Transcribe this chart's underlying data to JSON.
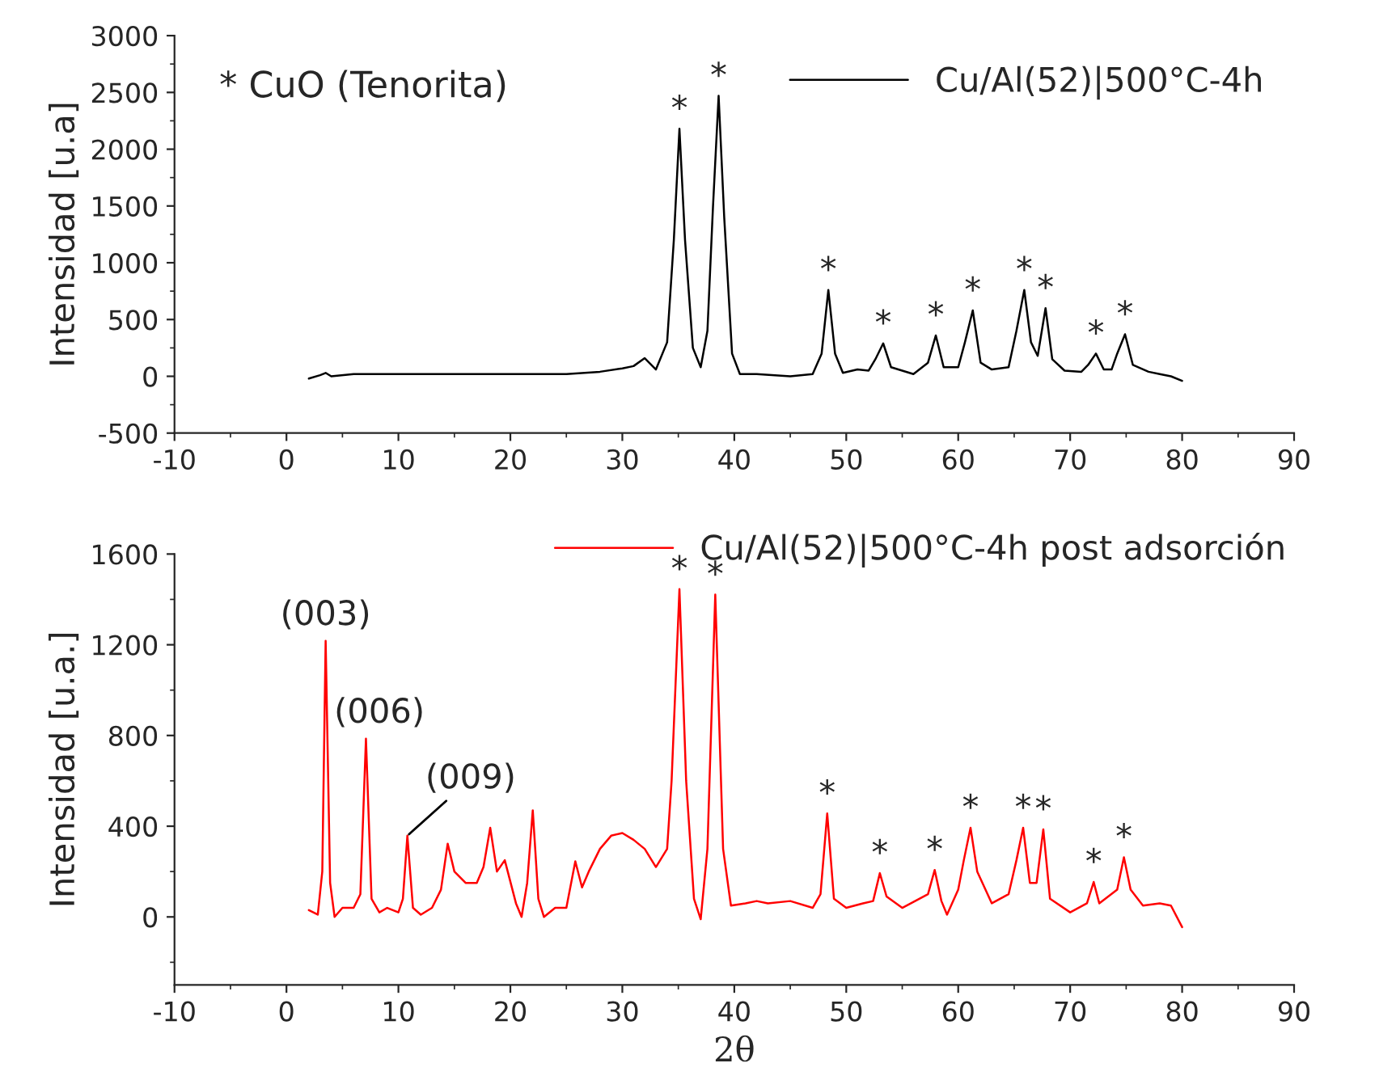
{
  "chart_data": [
    {
      "type": "line",
      "ylabel": "Intensidad [u.a]",
      "xlim": [
        -10,
        90
      ],
      "xticks": [
        -10,
        0,
        10,
        20,
        30,
        40,
        50,
        60,
        70,
        80,
        90
      ],
      "ylim": [
        -500,
        3000
      ],
      "yticks": [
        -500,
        0,
        500,
        1000,
        1500,
        2000,
        2500,
        3000
      ],
      "grid": false,
      "legend": "top right",
      "series": [
        {
          "name": "Cu/Al(52)|500°C-4h",
          "color": "#000000",
          "x": [
            2,
            3,
            3.5,
            4,
            6,
            10,
            15,
            20,
            25,
            28,
            30,
            31,
            32,
            33,
            34,
            34.6,
            35.1,
            35.6,
            36.3,
            37,
            37.6,
            38.1,
            38.6,
            39.1,
            39.8,
            40.5,
            42,
            45,
            47,
            47.8,
            48.4,
            49,
            49.7,
            51,
            52,
            52.6,
            53.3,
            54,
            56,
            57.3,
            58,
            58.7,
            60,
            60.6,
            61.3,
            62,
            63,
            64.5,
            65.2,
            65.9,
            66.5,
            67.1,
            67.8,
            68.4,
            69.5,
            71,
            71.6,
            72.3,
            73,
            73.7,
            74.2,
            74.9,
            75.6,
            77,
            78,
            79,
            80
          ],
          "values": [
            -20,
            10,
            30,
            0,
            20,
            20,
            20,
            20,
            20,
            40,
            70,
            90,
            160,
            60,
            300,
            1200,
            2180,
            1200,
            250,
            80,
            400,
            1500,
            2470,
            1400,
            200,
            20,
            20,
            0,
            20,
            200,
            760,
            200,
            30,
            60,
            50,
            150,
            290,
            80,
            20,
            120,
            360,
            80,
            80,
            300,
            580,
            120,
            60,
            80,
            400,
            760,
            300,
            180,
            600,
            150,
            50,
            40,
            100,
            200,
            60,
            60,
            200,
            370,
            100,
            40,
            20,
            0,
            -40
          ]
        }
      ],
      "annotations": [
        "* CuO (Tenorita)",
        {
          "text": "*",
          "x": 35.1,
          "y": 2180
        },
        {
          "text": "*",
          "x": 38.6,
          "y": 2470
        },
        {
          "text": "*",
          "x": 48.4,
          "y": 760
        },
        {
          "text": "*",
          "x": 53.3,
          "y": 290
        },
        {
          "text": "*",
          "x": 58,
          "y": 360
        },
        {
          "text": "*",
          "x": 61.3,
          "y": 580
        },
        {
          "text": "*",
          "x": 65.9,
          "y": 760
        },
        {
          "text": "*",
          "x": 67.8,
          "y": 600
        },
        {
          "text": "*",
          "x": 72.3,
          "y": 200
        },
        {
          "text": "*",
          "x": 74.9,
          "y": 370
        }
      ]
    },
    {
      "type": "line",
      "ylabel": "Intensidad [u.a.]",
      "xlabel": "2θ",
      "xlim": [
        -10,
        90
      ],
      "xticks": [
        -10,
        0,
        10,
        20,
        30,
        40,
        50,
        60,
        70,
        80,
        90
      ],
      "ylim": [
        -300,
        1600
      ],
      "yticks": [
        0,
        400,
        800,
        1200,
        1600
      ],
      "grid": false,
      "legend": "top right",
      "series": [
        {
          "name": "Cu/Al(52)|500°C-4h post adsorción",
          "color": "#ff0000",
          "x": [
            2,
            2.8,
            3.2,
            3.5,
            3.9,
            4.3,
            5,
            6,
            6.6,
            7.1,
            7.6,
            8.3,
            9,
            10,
            10.4,
            10.8,
            11.3,
            12,
            13,
            13.8,
            14.4,
            15,
            16,
            17,
            17.6,
            18.2,
            18.8,
            19.5,
            20.5,
            21,
            21.5,
            22,
            22.5,
            23,
            24,
            25,
            25.8,
            26.4,
            27,
            28,
            29,
            30,
            31,
            32,
            33,
            34,
            34.4,
            35.1,
            35.7,
            36.4,
            37,
            37.6,
            38.3,
            39,
            39.7,
            41,
            42,
            43,
            45,
            47,
            47.7,
            48.3,
            48.9,
            50,
            51.5,
            52.4,
            53,
            53.6,
            55,
            57.3,
            57.9,
            58.5,
            59,
            60,
            60.5,
            61.1,
            61.7,
            63,
            64.5,
            65.2,
            65.8,
            66.4,
            67,
            67.6,
            68.2,
            70,
            71.5,
            72.1,
            72.6,
            74.2,
            74.8,
            75.4,
            76.5,
            78,
            79,
            80
          ],
          "values": [
            30,
            10,
            200,
            1217,
            150,
            0,
            40,
            40,
            100,
            786,
            80,
            20,
            40,
            20,
            80,
            358,
            40,
            10,
            40,
            120,
            323,
            200,
            150,
            150,
            220,
            393,
            200,
            250,
            60,
            0,
            150,
            470,
            80,
            0,
            40,
            40,
            245,
            130,
            200,
            300,
            358,
            370,
            340,
            300,
            220,
            300,
            600,
            1445,
            600,
            80,
            -10,
            300,
            1421,
            300,
            50,
            60,
            70,
            60,
            70,
            40,
            100,
            456,
            80,
            40,
            60,
            70,
            193,
            90,
            40,
            100,
            207,
            70,
            10,
            120,
            250,
            393,
            200,
            60,
            100,
            250,
            393,
            150,
            150,
            386,
            80,
            20,
            60,
            154,
            60,
            120,
            263,
            120,
            50,
            60,
            50,
            -45
          ]
        }
      ],
      "annotations": [
        {
          "text": "(003)",
          "x": 3.5,
          "y": 1217
        },
        {
          "text": "(006)",
          "x": 7.1,
          "y": 786
        },
        {
          "text": "(009)",
          "x": 10.8,
          "y": 358
        },
        {
          "text": "*",
          "x": 35.1,
          "y": 1445
        },
        {
          "text": "*",
          "x": 38.3,
          "y": 1421
        },
        {
          "text": "*",
          "x": 48.3,
          "y": 456
        },
        {
          "text": "*",
          "x": 53,
          "y": 193
        },
        {
          "text": "*",
          "x": 57.9,
          "y": 207
        },
        {
          "text": "*",
          "x": 61.1,
          "y": 393
        },
        {
          "text": "*",
          "x": 65.8,
          "y": 393
        },
        {
          "text": "*",
          "x": 67.6,
          "y": 386
        },
        {
          "text": "*",
          "x": 72.1,
          "y": 154
        },
        {
          "text": "*",
          "x": 74.8,
          "y": 263
        }
      ]
    }
  ]
}
